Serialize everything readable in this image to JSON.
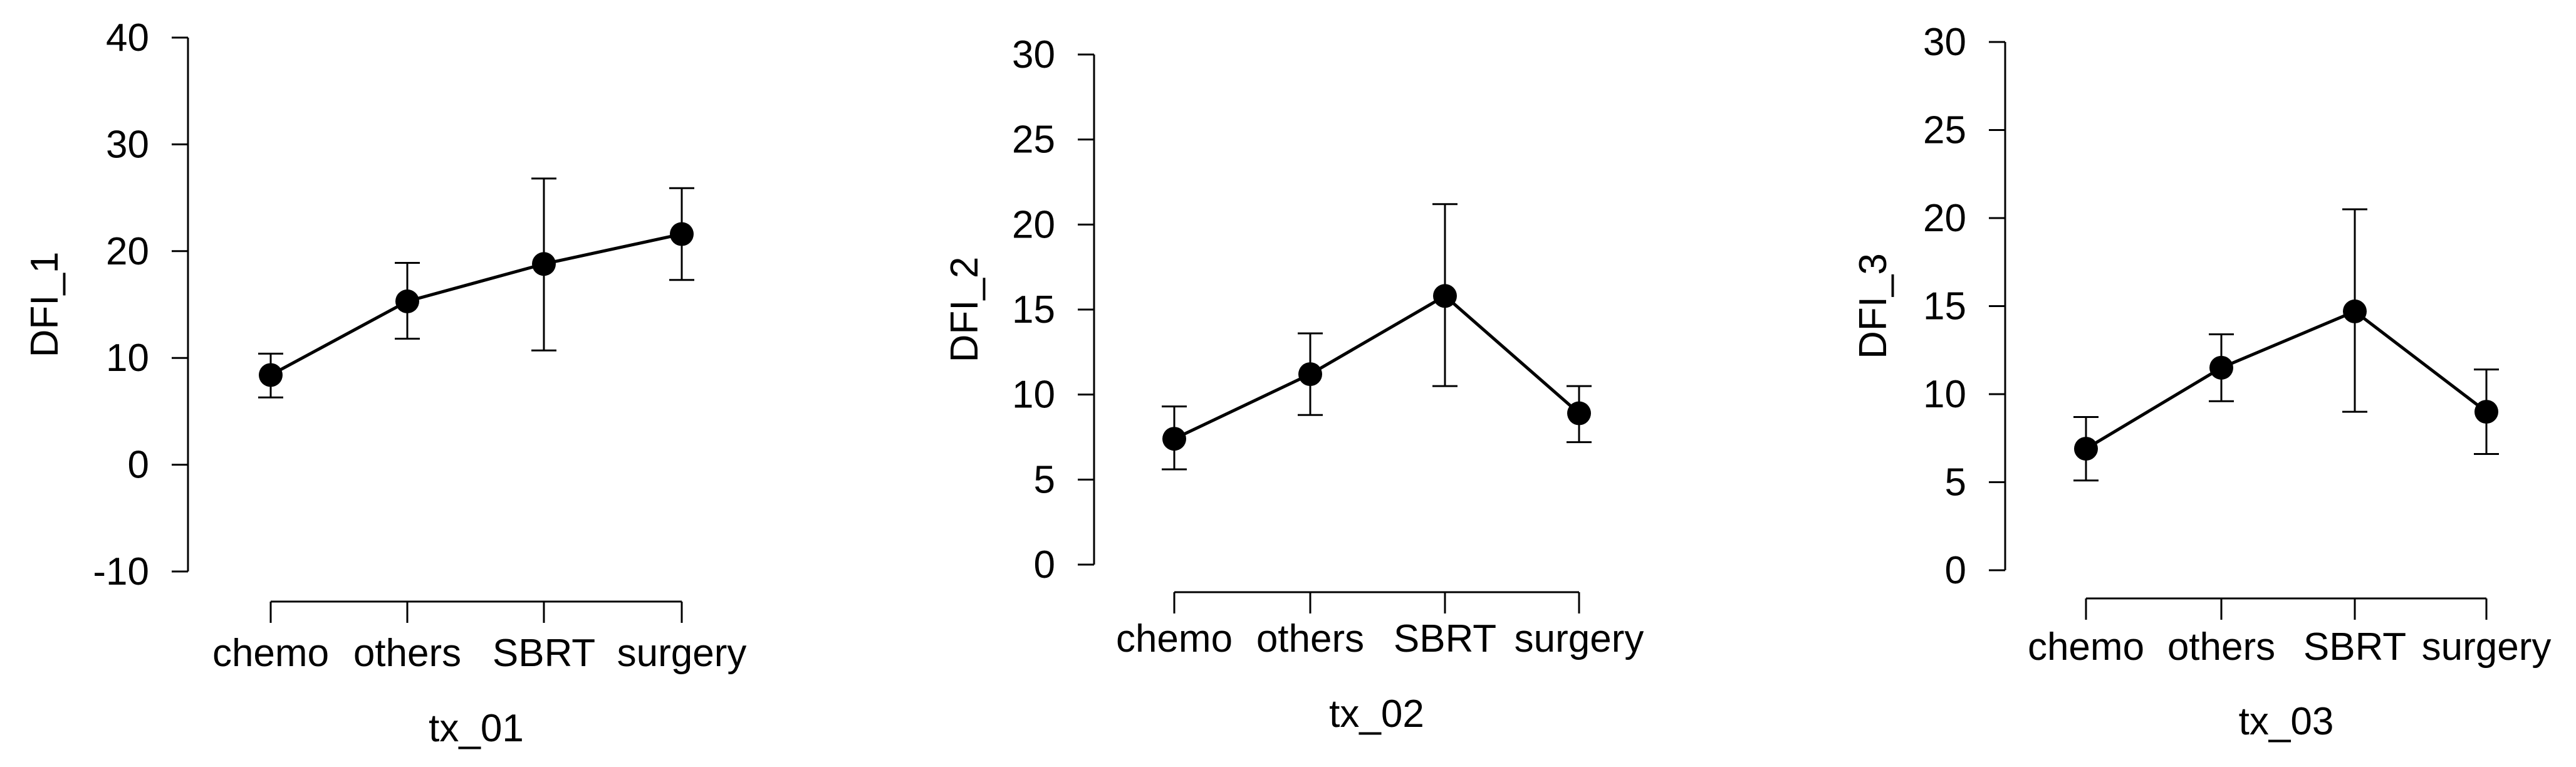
{
  "colors": {
    "axis": "#000000",
    "line": "#000000",
    "marker": "#000000",
    "errorbar": "#000000",
    "background": "#ffffff"
  },
  "chart_data": [
    {
      "type": "line",
      "errorbars": true,
      "categories": [
        "chemo",
        "others",
        "SBRT",
        "surgery"
      ],
      "values": [
        8.4,
        15.3,
        18.8,
        21.6
      ],
      "error_lower": [
        6.3,
        11.8,
        10.7,
        17.3
      ],
      "error_upper": [
        10.4,
        18.9,
        26.8,
        25.9
      ],
      "xlabel": "tx_01",
      "ylabel": "DFI_1",
      "ylim": [
        -10,
        40
      ],
      "yticks": [
        -10,
        0,
        10,
        20,
        30,
        40
      ],
      "ytick_labels": [
        "-10",
        "0",
        "10",
        "20",
        "30",
        "40"
      ],
      "grid": false,
      "legend": "none"
    },
    {
      "type": "line",
      "errorbars": true,
      "categories": [
        "chemo",
        "others",
        "SBRT",
        "surgery"
      ],
      "values": [
        7.4,
        11.2,
        15.8,
        8.9
      ],
      "error_lower": [
        5.6,
        8.8,
        10.5,
        7.2
      ],
      "error_upper": [
        9.3,
        13.6,
        21.2,
        10.5
      ],
      "xlabel": "tx_02",
      "ylabel": "DFI_2",
      "ylim": [
        0,
        30
      ],
      "yticks": [
        0,
        5,
        10,
        15,
        20,
        25,
        30
      ],
      "ytick_labels": [
        "0",
        "5",
        "10",
        "15",
        "20",
        "25",
        "30"
      ],
      "grid": false,
      "legend": "none"
    },
    {
      "type": "line",
      "errorbars": true,
      "categories": [
        "chemo",
        "others",
        "SBRT",
        "surgery"
      ],
      "values": [
        6.9,
        11.5,
        14.7,
        9.0
      ],
      "error_lower": [
        5.1,
        9.6,
        9.0,
        6.6
      ],
      "error_upper": [
        8.7,
        13.4,
        20.5,
        11.4
      ],
      "xlabel": "tx_03",
      "ylabel": "DFI_3",
      "ylim": [
        0,
        30
      ],
      "yticks": [
        0,
        5,
        10,
        15,
        20,
        25,
        30
      ],
      "ytick_labels": [
        "0",
        "5",
        "10",
        "15",
        "20",
        "25",
        "30"
      ],
      "grid": false,
      "legend": "none"
    }
  ]
}
